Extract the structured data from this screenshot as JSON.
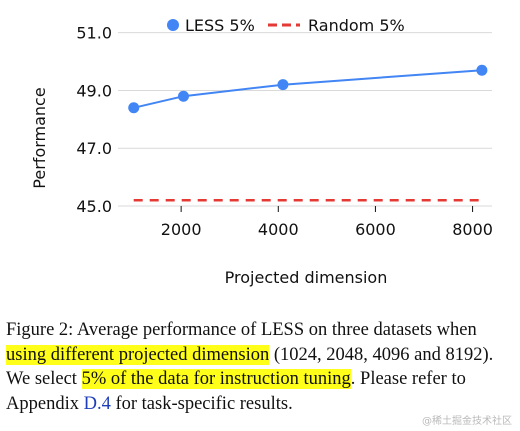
{
  "chart_data": {
    "type": "line",
    "xlabel": "Projected dimension",
    "ylabel": "Performance",
    "xlim": [
      700,
      8400
    ],
    "ylim": [
      45,
      51.3
    ],
    "x_ticks": [
      2000,
      4000,
      6000,
      8000
    ],
    "y_ticks": [
      45.0,
      47.0,
      49.0,
      51.0
    ],
    "y_tick_labels": [
      "45.0",
      "47.0",
      "49.0",
      "51.0"
    ],
    "grid": "horizontal",
    "legend_position": "top",
    "series": [
      {
        "name": "LESS 5%",
        "style": "solid line with circle markers",
        "color": "#4285f4",
        "x": [
          1024,
          2048,
          4096,
          8192
        ],
        "values": [
          48.4,
          48.8,
          49.2,
          49.7
        ]
      },
      {
        "name": "Random 5%",
        "style": "dashed line",
        "color": "#e53935",
        "x": [
          1024,
          8192
        ],
        "values": [
          45.2,
          45.2
        ]
      }
    ]
  },
  "caption": {
    "segments": [
      {
        "text": "Figure 2: Average performance of LESS on three datasets when ",
        "style": "plain"
      },
      {
        "text": "using different projected dimension",
        "style": "highlight"
      },
      {
        "text": " (1024, 2048, 4096 and 8192). We select ",
        "style": "plain"
      },
      {
        "text": "5% of the data for instruction tuning",
        "style": "highlight"
      },
      {
        "text": ". Please refer to Appendix ",
        "style": "plain"
      },
      {
        "text": "D.4",
        "style": "link"
      },
      {
        "text": " for task-specific results.",
        "style": "plain"
      }
    ]
  },
  "watermark": "@稀土掘金技术社区"
}
